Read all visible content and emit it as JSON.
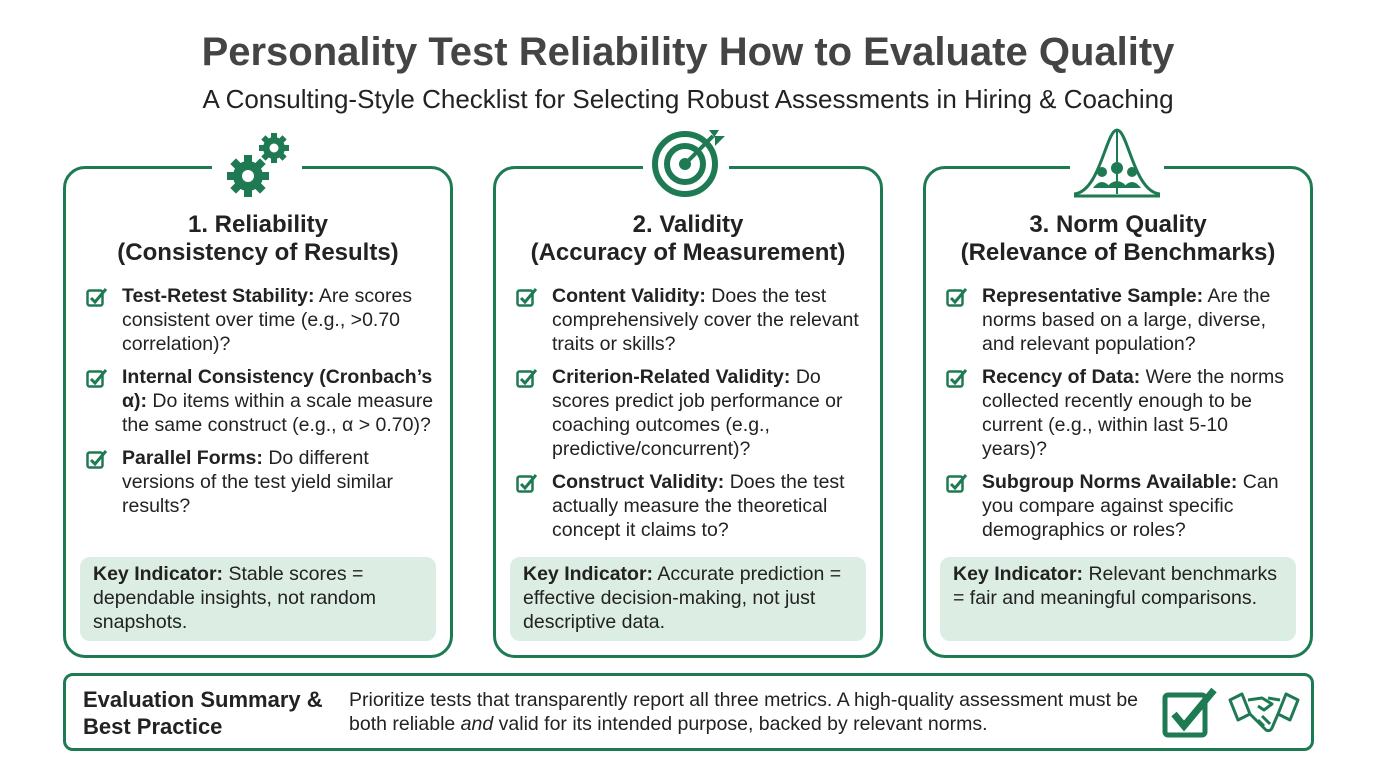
{
  "header": {
    "title": "Personality Test Reliability How to Evaluate Quality",
    "subtitle": "A Consulting-Style Checklist for Selecting Robust Assessments in Hiring & Coaching"
  },
  "cards": [
    {
      "heading": "1. Reliability",
      "subheading": "(Consistency of Results)",
      "items": [
        {
          "term": "Test-Retest Stability:",
          "text": "Are scores consistent over time (e.g., >0.70 correlation)?"
        },
        {
          "term": "Internal Consistency (Cronbach’s α):",
          "text": "Do items within a scale measure the same construct (e.g., α > 0.70)?"
        },
        {
          "term": "Parallel Forms:",
          "text": "Do different versions of the test yield similar results?"
        }
      ],
      "key_indicator": {
        "label": "Key Indicator:",
        "text": "Stable scores = dependable insights, not random snapshots."
      }
    },
    {
      "heading": "2. Validity",
      "subheading": "(Accuracy of Measurement)",
      "items": [
        {
          "term": "Content Validity:",
          "text": "Does the test comprehensively cover the relevant traits or skills?"
        },
        {
          "term": "Criterion-Related Validity:",
          "text": "Do scores predict job performance or coaching outcomes (e.g., predictive/concurrent)?"
        },
        {
          "term": "Construct Validity:",
          "text": "Does the test actually measure the theoretical concept it claims to?"
        }
      ],
      "key_indicator": {
        "label": "Key Indicator:",
        "text": "Accurate prediction = effective decision-making, not just descriptive data."
      }
    },
    {
      "heading": "3. Norm Quality",
      "subheading": "(Relevance of Benchmarks)",
      "items": [
        {
          "term": "Representative Sample:",
          "text": "Are the norms based on a large, diverse, and relevant population?"
        },
        {
          "term": "Recency of Data:",
          "text": "Were the norms collected recently enough to be current (e.g., within last 5-10 years)?"
        },
        {
          "term": "Subgroup Norms Available:",
          "text": "Can you compare against specific demographics or roles?"
        }
      ],
      "key_indicator": {
        "label": "Key Indicator:",
        "text": "Relevant benchmarks = fair and meaningful comparisons."
      }
    }
  ],
  "summary": {
    "label": "Evaluation Summary & Best Practice",
    "text_before": "Prioritize tests that transparently report all three metrics. A high-quality assessment must be both reliable",
    "emphasis": "and",
    "text_after": "valid for its intended purpose, backed by relevant norms."
  }
}
